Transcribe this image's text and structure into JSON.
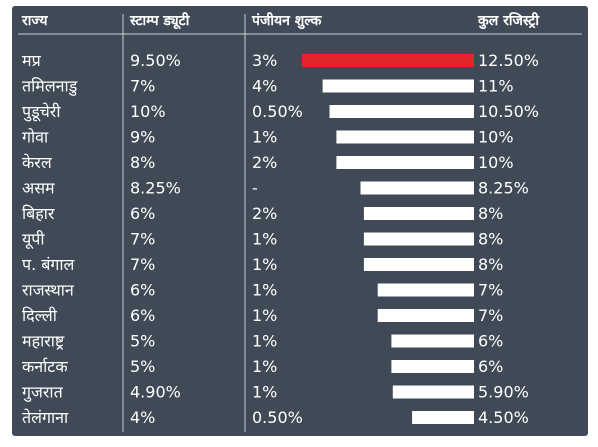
{
  "chart_data": {
    "type": "table",
    "columns": [
      "राज्य",
      "स्टाम्प ड्यूटी",
      "पंजीयन शुल्क",
      "कुल रजिस्ट्री"
    ],
    "rows": [
      {
        "state": "मप्र",
        "stamp_duty": "9.50%",
        "registration_fee": "3%",
        "total": "12.50%",
        "total_value": 12.5
      },
      {
        "state": "तमिलनाडु",
        "stamp_duty": "7%",
        "registration_fee": "4%",
        "total": "11%",
        "total_value": 11
      },
      {
        "state": "पुडूचेरी",
        "stamp_duty": "10%",
        "registration_fee": "0.50%",
        "total": "10.50%",
        "total_value": 10.5
      },
      {
        "state": "गोवा",
        "stamp_duty": "9%",
        "registration_fee": "1%",
        "total": "10%",
        "total_value": 10
      },
      {
        "state": "केरल",
        "stamp_duty": "8%",
        "registration_fee": "2%",
        "total": "10%",
        "total_value": 10
      },
      {
        "state": "असम",
        "stamp_duty": "8.25%",
        "registration_fee": "-",
        "total": "8.25%",
        "total_value": 8.25
      },
      {
        "state": "बिहार",
        "stamp_duty": "6%",
        "registration_fee": "2%",
        "total": "8%",
        "total_value": 8
      },
      {
        "state": "यूपी",
        "stamp_duty": "7%",
        "registration_fee": "1%",
        "total": "8%",
        "total_value": 8
      },
      {
        "state": "प. बंगाल",
        "stamp_duty": "7%",
        "registration_fee": "1%",
        "total": "8%",
        "total_value": 8
      },
      {
        "state": "राजस्थान",
        "stamp_duty": "6%",
        "registration_fee": "1%",
        "total": "7%",
        "total_value": 7
      },
      {
        "state": "दिल्ली",
        "stamp_duty": "6%",
        "registration_fee": "1%",
        "total": "7%",
        "total_value": 7
      },
      {
        "state": "महाराष्ट्र",
        "stamp_duty": "5%",
        "registration_fee": "1%",
        "total": "6%",
        "total_value": 6
      },
      {
        "state": "कर्नाटक",
        "stamp_duty": "5%",
        "registration_fee": "1%",
        "total": "6%",
        "total_value": 6
      },
      {
        "state": "गुजरात",
        "stamp_duty": "4.90%",
        "registration_fee": "1%",
        "total": "5.90%",
        "total_value": 5.9
      },
      {
        "state": "तेलंगाना",
        "stamp_duty": "4%",
        "registration_fee": "0.50%",
        "total": "4.50%",
        "total_value": 4.5
      }
    ],
    "highlight_color": "#e3262b",
    "bar_color": "#ffffff",
    "background_color": "#3f4a56"
  }
}
